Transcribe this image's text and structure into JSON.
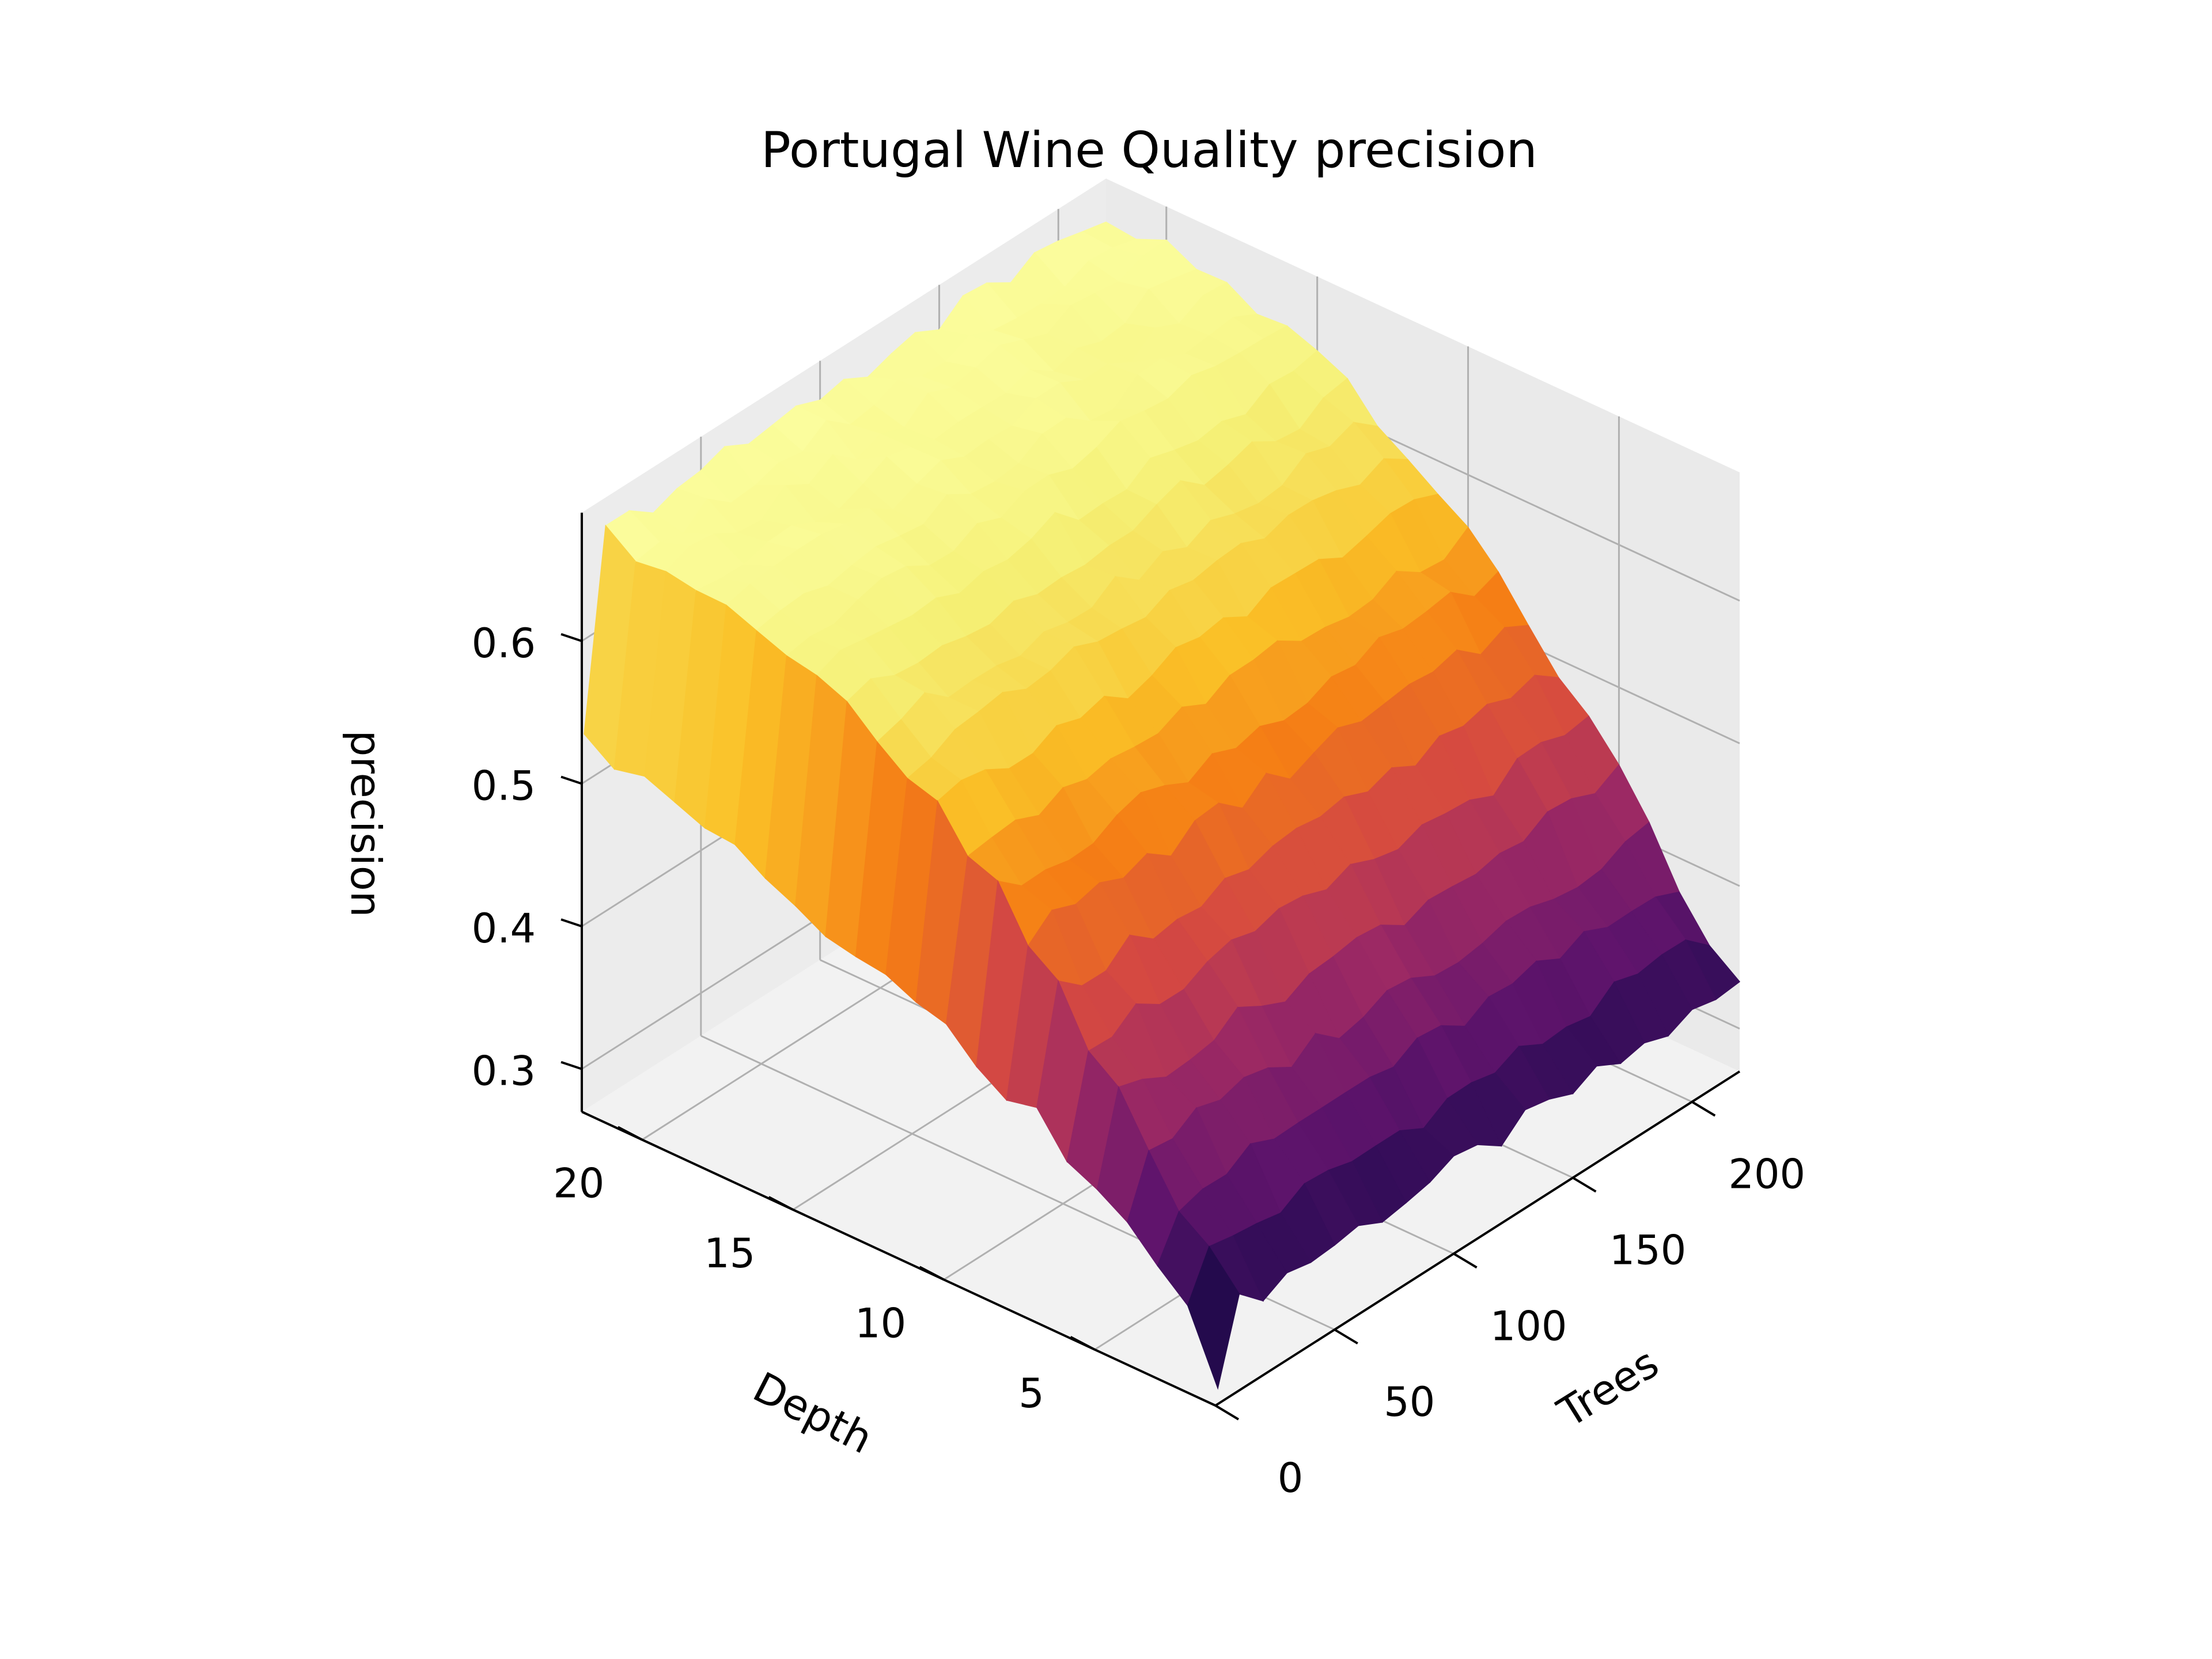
{
  "chart_data": {
    "type": "surface3d",
    "title": "Portugal Wine Quality precision",
    "xlabel": "Trees",
    "ylabel": "Depth",
    "zlabel": "precision",
    "x_ticks": [
      "0",
      "50",
      "100",
      "150",
      "200"
    ],
    "y_ticks": [
      "5",
      "10",
      "15",
      "20"
    ],
    "z_ticks": [
      "0.3",
      "0.4",
      "0.5",
      "0.6"
    ],
    "xlim": [
      0,
      220
    ],
    "ylim": [
      1,
      22
    ],
    "zlim": [
      0.27,
      0.69
    ],
    "colormap": "inferno",
    "grid": true,
    "trees": [
      1,
      10,
      20,
      30,
      40,
      50,
      60,
      70,
      80,
      90,
      100,
      110,
      120,
      130,
      140,
      150,
      160,
      170,
      180,
      190,
      200,
      210,
      220
    ],
    "depth": [
      1,
      2,
      3,
      4,
      5,
      6,
      7,
      8,
      9,
      10,
      11,
      12,
      13,
      14,
      15,
      16,
      17,
      18,
      19,
      20,
      21,
      22
    ],
    "precision_model": {
      "depth_values": [
        {
          "depth": 1,
          "precision": 0.33
        },
        {
          "depth": 4,
          "precision": 0.41
        },
        {
          "depth": 8,
          "precision": 0.52
        },
        {
          "depth": 12,
          "precision": 0.6
        },
        {
          "depth": 16,
          "precision": 0.645
        },
        {
          "depth": 22,
          "precision": 0.665
        }
      ],
      "single_tree_precision": 0.53,
      "minimum_precision": 0.29
    }
  },
  "colors": {
    "pane": "#f2f2f2",
    "grid": "#b0b0b0",
    "axis": "#000000"
  }
}
